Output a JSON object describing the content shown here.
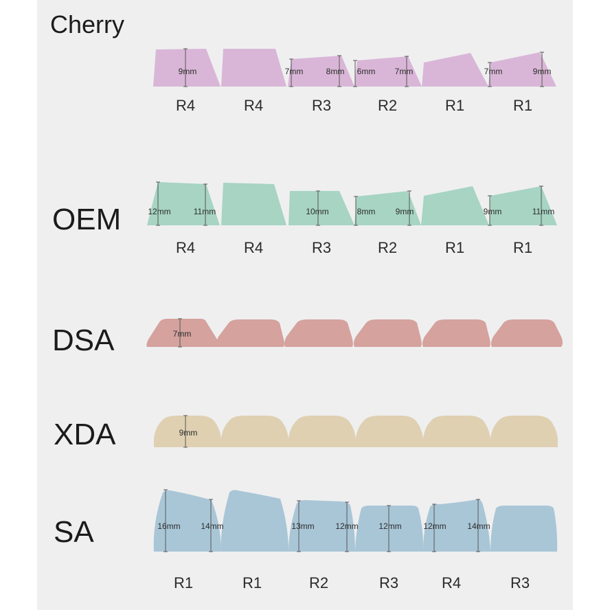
{
  "colors": {
    "cherry": "#d9b6d7",
    "oem": "#a7d4c3",
    "dsa": "#d5a29e",
    "xda": "#dfd0b2",
    "sa": "#a9c6d7",
    "marker": "#555555",
    "background": "#efeff0"
  },
  "profiles": [
    {
      "id": "cherry",
      "name": "Cherry",
      "row_labels": [
        "R4",
        "R4",
        "R3",
        "R2",
        "R1",
        "R1"
      ],
      "measurements": [
        [
          "9mm"
        ],
        [],
        [
          "7mm",
          "8mm"
        ],
        [
          "6mm",
          "7mm"
        ],
        [],
        [
          "7mm",
          "9mm"
        ]
      ]
    },
    {
      "id": "oem",
      "name": "OEM",
      "row_labels": [
        "R4",
        "R4",
        "R3",
        "R2",
        "R1",
        "R1"
      ],
      "measurements": [
        [
          "12mm",
          "11mm"
        ],
        [],
        [
          "10mm"
        ],
        [
          "8mm",
          "9mm"
        ],
        [],
        [
          "9mm",
          "11mm"
        ]
      ]
    },
    {
      "id": "dsa",
      "name": "DSA",
      "row_labels": [],
      "measurements": [
        [
          "7mm"
        ],
        [],
        [],
        [],
        [],
        []
      ]
    },
    {
      "id": "xda",
      "name": "XDA",
      "row_labels": [],
      "measurements": [
        [
          "9mm"
        ],
        [],
        [],
        [],
        [],
        []
      ]
    },
    {
      "id": "sa",
      "name": "SA",
      "row_labels": [
        "R1",
        "R1",
        "R2",
        "R3",
        "R4",
        "R3"
      ],
      "measurements": [
        [
          "16mm",
          "14mm"
        ],
        [],
        [
          "13mm",
          "12mm"
        ],
        [
          "12mm"
        ],
        [
          "12mm",
          "14mm"
        ],
        []
      ]
    }
  ]
}
